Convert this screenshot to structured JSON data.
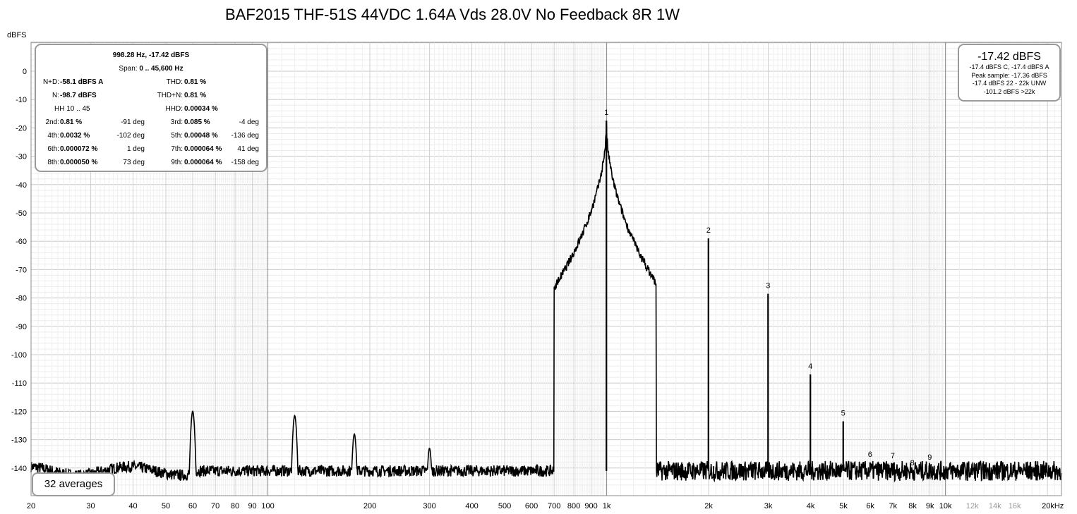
{
  "title": "BAF2015 THF-51S 44VDC 1.64A Vds 28.0V No Feedback 8R 1W",
  "y_unit": "dBFS",
  "info": {
    "peak": "998.28 Hz, -17.42 dBFS",
    "span_label": "Span:",
    "span_value": "0 .. 45,600 Hz",
    "nd_label": "N+D:",
    "nd_value": "-58.1 dBFS A",
    "thd_label": "THD:",
    "thd_value": "0.81 %",
    "n_label": "N:",
    "n_value": "-98.7 dBFS",
    "thdn_label": "THD+N:",
    "thdn_value": "0.81 %",
    "hh_label": "HH 10 .. 45",
    "hhd_label": "HHD:",
    "hhd_value": "0.00034 %",
    "rows": [
      {
        "l1": "2nd:",
        "v1": "0.81 %",
        "d1": "-91 deg",
        "l2": "3rd:",
        "v2": "0.085 %",
        "d2": "-4 deg"
      },
      {
        "l1": "4th:",
        "v1": "0.0032 %",
        "d1": "-102 deg",
        "l2": "5th:",
        "v2": "0.00048 %",
        "d2": "-136 deg"
      },
      {
        "l1": "6th:",
        "v1": "0.000072 %",
        "d1": "1 deg",
        "l2": "7th:",
        "v2": "0.000064 %",
        "d2": "41 deg"
      },
      {
        "l1": "8th:",
        "v1": "0.000050 %",
        "d1": "73 deg",
        "l2": "9th:",
        "v2": "0.000064 %",
        "d2": "-158 deg"
      }
    ]
  },
  "level": {
    "main": "-17.42 dBFS",
    "l1": "-17.4 dBFS C, -17.4 dBFS A",
    "l2": "Peak sample: -17.36 dBFS",
    "l3": "-17.4 dBFS 22 - 22k UNW",
    "l4": "-101.2 dBFS >22k"
  },
  "averages": "32 averages",
  "chart_data": {
    "type": "line",
    "x_scale": "log",
    "xlim": [
      20,
      22000
    ],
    "ylim": [
      -147,
      10
    ],
    "grid": true,
    "y_ticks": [
      0,
      -10,
      -20,
      -30,
      -40,
      -50,
      -60,
      -70,
      -80,
      -90,
      -100,
      -110,
      -120,
      -130,
      -140
    ],
    "x_ticks": [
      {
        "v": 20,
        "label": "20"
      },
      {
        "v": 30,
        "label": "30"
      },
      {
        "v": 40,
        "label": "40"
      },
      {
        "v": 50,
        "label": "50"
      },
      {
        "v": 60,
        "label": "60"
      },
      {
        "v": 70,
        "label": "70"
      },
      {
        "v": 80,
        "label": "80"
      },
      {
        "v": 90,
        "label": "90"
      },
      {
        "v": 100,
        "label": "100"
      },
      {
        "v": 200,
        "label": "200"
      },
      {
        "v": 300,
        "label": "300"
      },
      {
        "v": 400,
        "label": "400"
      },
      {
        "v": 500,
        "label": "500"
      },
      {
        "v": 600,
        "label": "600"
      },
      {
        "v": 700,
        "label": "700"
      },
      {
        "v": 800,
        "label": "800"
      },
      {
        "v": 900,
        "label": "900"
      },
      {
        "v": 1000,
        "label": "1k"
      },
      {
        "v": 2000,
        "label": "2k"
      },
      {
        "v": 3000,
        "label": "3k"
      },
      {
        "v": 4000,
        "label": "4k"
      },
      {
        "v": 5000,
        "label": "5k"
      },
      {
        "v": 6000,
        "label": "6k"
      },
      {
        "v": 7000,
        "label": "7k"
      },
      {
        "v": 8000,
        "label": "8k"
      },
      {
        "v": 9000,
        "label": "9k"
      },
      {
        "v": 10000,
        "label": "10k"
      },
      {
        "v": 12000,
        "label": "12k",
        "light": true
      },
      {
        "v": 14000,
        "label": "14k",
        "light": true
      },
      {
        "v": 16000,
        "label": "16k",
        "light": true
      },
      {
        "v": 20000,
        "label": "20kHz"
      }
    ],
    "peaks": [
      {
        "f": 60,
        "db": -120
      },
      {
        "f": 120,
        "db": -121.5
      },
      {
        "f": 180,
        "db": -128
      },
      {
        "f": 300,
        "db": -133
      }
    ],
    "harmonics": [
      {
        "label": "1",
        "f": 998.28,
        "db": -17.42
      },
      {
        "label": "2",
        "f": 1997,
        "db": -59
      },
      {
        "label": "3",
        "f": 2995,
        "db": -78.5
      },
      {
        "label": "4",
        "f": 3993,
        "db": -107
      },
      {
        "label": "5",
        "f": 4991,
        "db": -123.5
      },
      {
        "label": "6",
        "f": 5990,
        "db": -138
      },
      {
        "label": "7",
        "f": 6988,
        "db": -138.5
      },
      {
        "label": "8",
        "f": 7986,
        "db": -141
      },
      {
        "label": "9",
        "f": 8985,
        "db": -139
      }
    ],
    "noise_floor_db": -141
  }
}
